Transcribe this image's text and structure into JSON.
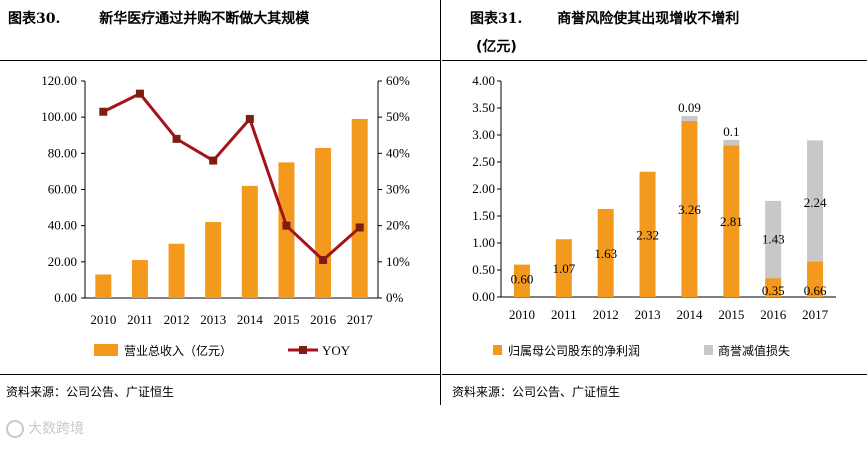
{
  "left": {
    "fig_num": "图表30.",
    "fig_title": "新华医疗通过并购不断做大其规模",
    "source": "资料来源：公司公告、广证恒生"
  },
  "right": {
    "fig_num": "图表31.",
    "fig_title": "商誉风险使其出现增收不增利",
    "fig_subtitle": "(亿元)",
    "source": "资料来源：公司公告、广证恒生"
  },
  "watermark": "大数跨境",
  "colors": {
    "orange": "#f39a1e",
    "gray": "#c8c8c8",
    "dark_red": "#a4121b",
    "marker": "#7f1d10"
  },
  "chart_data": [
    {
      "type": "bar",
      "categories": [
        "2010",
        "2011",
        "2012",
        "2013",
        "2014",
        "2015",
        "2016",
        "2017"
      ],
      "series": [
        {
          "name": "营业总收入（亿元）",
          "values": [
            13,
            21,
            30,
            42,
            62,
            75,
            83,
            99
          ],
          "axis": "left",
          "style": "bar"
        },
        {
          "name": "YOY",
          "values": [
            51.5,
            56.5,
            44,
            38,
            49.5,
            20,
            10.5,
            19.5
          ],
          "axis": "right",
          "style": "line"
        }
      ],
      "yleft": {
        "min": 0,
        "max": 120,
        "step": 20,
        "ticks": [
          "0.00",
          "20.00",
          "40.00",
          "60.00",
          "80.00",
          "100.00",
          "120.00"
        ]
      },
      "yright": {
        "min": 0,
        "max": 60,
        "step": 10,
        "ticks": [
          "0%",
          "10%",
          "20%",
          "30%",
          "40%",
          "50%",
          "60%"
        ]
      },
      "legend_position": "bottom"
    },
    {
      "type": "bar",
      "stacked": true,
      "categories": [
        "2010",
        "2011",
        "2012",
        "2013",
        "2014",
        "2015",
        "2016",
        "2017"
      ],
      "series": [
        {
          "name": "归属母公司股东的净利润",
          "values": [
            0.6,
            1.07,
            1.63,
            2.32,
            3.26,
            2.81,
            0.35,
            0.66
          ],
          "labels": [
            "0.60",
            "1.07",
            "1.63",
            "2.32",
            "3.26",
            "2.81",
            "0.35",
            "0.66"
          ]
        },
        {
          "name": "商誉减值损失",
          "values": [
            0,
            0,
            0,
            0,
            0.09,
            0.1,
            1.43,
            2.24
          ],
          "labels": [
            "",
            "",
            "",
            "",
            "0.09",
            "0.1",
            "1.43",
            "2.24"
          ]
        }
      ],
      "y": {
        "min": 0,
        "max": 4,
        "step": 0.5,
        "ticks": [
          "0.00",
          "0.50",
          "1.00",
          "1.50",
          "2.00",
          "2.50",
          "3.00",
          "3.50",
          "4.00"
        ]
      },
      "legend_position": "bottom"
    }
  ]
}
